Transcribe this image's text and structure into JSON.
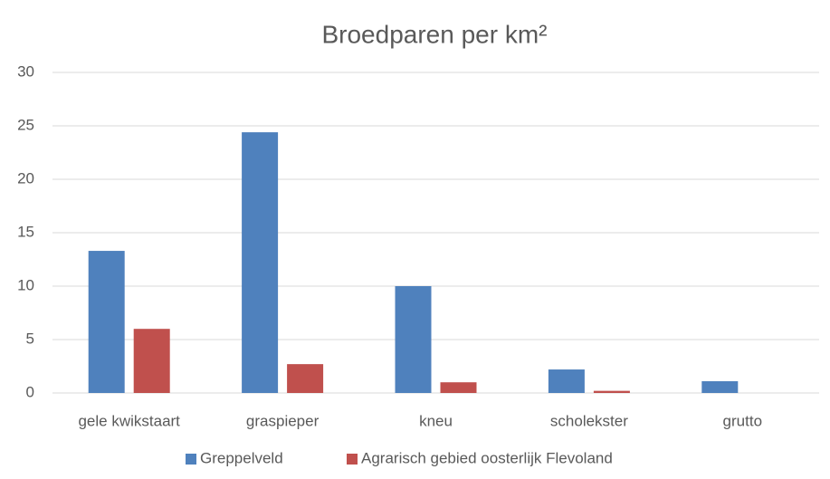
{
  "chart_data": {
    "type": "bar",
    "title": "Broedparen per km²",
    "categories": [
      "gele kwikstaart",
      "graspieper",
      "kneu",
      "scholekster",
      "grutto"
    ],
    "series": [
      {
        "name": "Greppelveld",
        "color": "#4f81bd",
        "values": [
          13.3,
          24.4,
          10.0,
          2.2,
          1.1
        ]
      },
      {
        "name": "Agrarisch gebied oosterlijk Flevoland",
        "color": "#c0504d",
        "values": [
          6.0,
          2.7,
          1.0,
          0.2,
          0
        ]
      }
    ],
    "ylim": [
      0,
      30
    ],
    "yticks": [
      0,
      5,
      10,
      15,
      20,
      25,
      30
    ],
    "grid": true,
    "legend": "bottom"
  }
}
